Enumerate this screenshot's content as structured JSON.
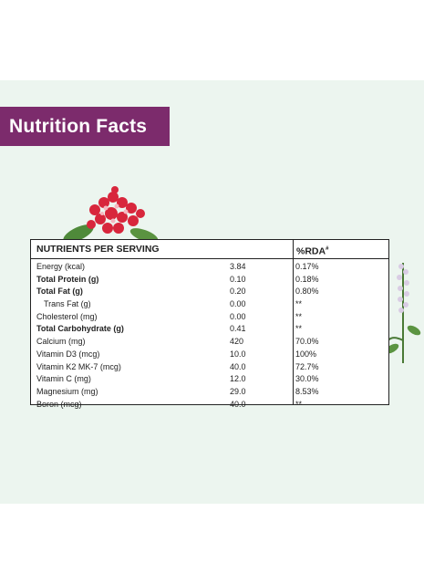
{
  "title": "Nutrition Facts",
  "colors": {
    "banner": "#7c2b6c",
    "panel": "#ecf5ef"
  },
  "table": {
    "headers": {
      "nutrients": "NUTRIENTS PER SERVING",
      "rda": "%RDA",
      "rda_mark": "#"
    },
    "rows": [
      {
        "name": "Energy (kcal)",
        "amount": "3.84",
        "rda": "0.17%",
        "bold": false,
        "indent": false
      },
      {
        "name": "Total Protein (g)",
        "amount": "0.10",
        "rda": "0.18%",
        "bold": true,
        "indent": false
      },
      {
        "name": "Total Fat (g)",
        "amount": "0.20",
        "rda": "0.80%",
        "bold": true,
        "indent": false
      },
      {
        "name": "Trans Fat (g)",
        "amount": "0.00",
        "rda": "**",
        "bold": false,
        "indent": true
      },
      {
        "name": "Cholesterol (mg)",
        "amount": "0.00",
        "rda": "**",
        "bold": false,
        "indent": false
      },
      {
        "name": "Total Carbohydrate (g)",
        "amount": "0.41",
        "rda": "**",
        "bold": true,
        "indent": false
      },
      {
        "name": "Calcium (mg)",
        "amount": "420",
        "rda": "70.0%",
        "bold": false,
        "indent": false
      },
      {
        "name": "Vitamin D3 (mcg)",
        "amount": "10.0",
        "rda": "100%",
        "bold": false,
        "indent": false
      },
      {
        "name": "Vitamin K2 MK-7 (mcg)",
        "amount": "40.0",
        "rda": "72.7%",
        "bold": false,
        "indent": false
      },
      {
        "name": "Vitamin C (mg)",
        "amount": "12.0",
        "rda": "30.0%",
        "bold": false,
        "indent": false
      },
      {
        "name": "Magnesium (mg)",
        "amount": "29.0",
        "rda": "8.53%",
        "bold": false,
        "indent": false
      },
      {
        "name": "Boron (mcg)",
        "amount": "40.0",
        "rda": "**",
        "bold": false,
        "indent": false
      }
    ]
  }
}
